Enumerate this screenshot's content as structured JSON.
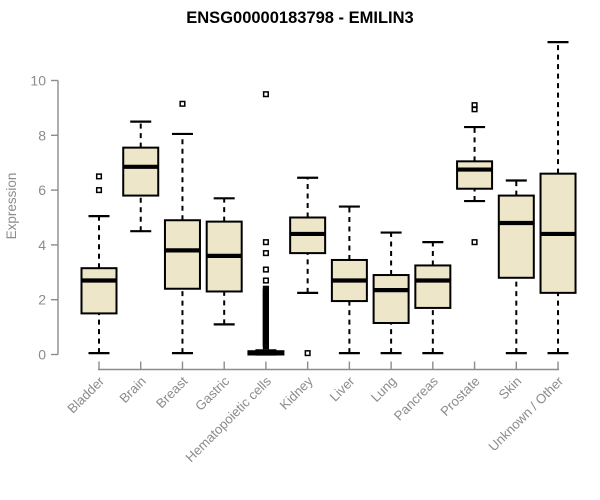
{
  "chart_data": {
    "type": "boxplot",
    "title": "ENSG00000183798 - EMILIN3",
    "ylabel": "Expression",
    "yticks": [
      0,
      2,
      4,
      6,
      8,
      10
    ],
    "ylim": [
      0,
      11.6
    ],
    "grid": false,
    "colors": {
      "box_fill": "#ede6c9",
      "box_stroke": "#000000",
      "axis_gray": "#8c8c8c",
      "title_color": "#000000"
    },
    "groups": [
      {
        "label": "Bladder",
        "whisker_low": 0.05,
        "q1": 1.5,
        "median": 2.7,
        "q3": 3.15,
        "whisker_high": 5.05,
        "outliers": [
          6.0,
          6.5
        ]
      },
      {
        "label": "Brain",
        "whisker_low": 4.5,
        "q1": 5.8,
        "median": 6.85,
        "q3": 7.55,
        "whisker_high": 8.5,
        "outliers": []
      },
      {
        "label": "Breast",
        "whisker_low": 0.05,
        "q1": 2.4,
        "median": 3.8,
        "q3": 4.9,
        "whisker_high": 8.05,
        "outliers": [
          9.15
        ]
      },
      {
        "label": "Gastric",
        "whisker_low": 1.1,
        "q1": 2.3,
        "median": 3.6,
        "q3": 4.85,
        "whisker_high": 5.7,
        "outliers": []
      },
      {
        "label": "Hematopoietic cells",
        "whisker_low": 0.0,
        "q1": 0.0,
        "median": 0.05,
        "q3": 0.12,
        "whisker_high": 0.15,
        "outliers": [
          0.3,
          0.35,
          0.4,
          0.45,
          0.5,
          0.55,
          0.6,
          0.65,
          0.7,
          0.75,
          0.8,
          0.85,
          0.9,
          0.95,
          1.0,
          1.05,
          1.1,
          1.15,
          1.2,
          1.25,
          1.3,
          1.35,
          1.4,
          1.45,
          1.5,
          1.55,
          1.6,
          1.65,
          1.7,
          1.75,
          1.8,
          1.85,
          1.9,
          1.95,
          2.0,
          2.05,
          2.1,
          2.15,
          2.2,
          2.25,
          2.3,
          2.35,
          2.4,
          2.7,
          3.1,
          3.7,
          4.1,
          9.5
        ]
      },
      {
        "label": "Kidney",
        "whisker_low": 2.25,
        "q1": 3.7,
        "median": 4.4,
        "q3": 5.0,
        "whisker_high": 6.45,
        "outliers": [
          0.05
        ]
      },
      {
        "label": "Liver",
        "whisker_low": 0.05,
        "q1": 1.95,
        "median": 2.7,
        "q3": 3.45,
        "whisker_high": 5.4,
        "outliers": []
      },
      {
        "label": "Lung",
        "whisker_low": 0.05,
        "q1": 1.15,
        "median": 2.35,
        "q3": 2.9,
        "whisker_high": 4.45,
        "outliers": []
      },
      {
        "label": "Pancreas",
        "whisker_low": 0.05,
        "q1": 1.7,
        "median": 2.7,
        "q3": 3.25,
        "whisker_high": 4.1,
        "outliers": []
      },
      {
        "label": "Prostate",
        "whisker_low": 5.6,
        "q1": 6.05,
        "median": 6.75,
        "q3": 7.05,
        "whisker_high": 8.3,
        "outliers": [
          4.1,
          8.95,
          9.1
        ]
      },
      {
        "label": "Skin",
        "whisker_low": 0.05,
        "q1": 2.8,
        "median": 4.8,
        "q3": 5.8,
        "whisker_high": 6.35,
        "outliers": []
      },
      {
        "label": "Unknown / Other",
        "whisker_low": 0.05,
        "q1": 2.25,
        "median": 4.4,
        "q3": 6.6,
        "whisker_high": 11.4,
        "outliers": []
      }
    ]
  }
}
